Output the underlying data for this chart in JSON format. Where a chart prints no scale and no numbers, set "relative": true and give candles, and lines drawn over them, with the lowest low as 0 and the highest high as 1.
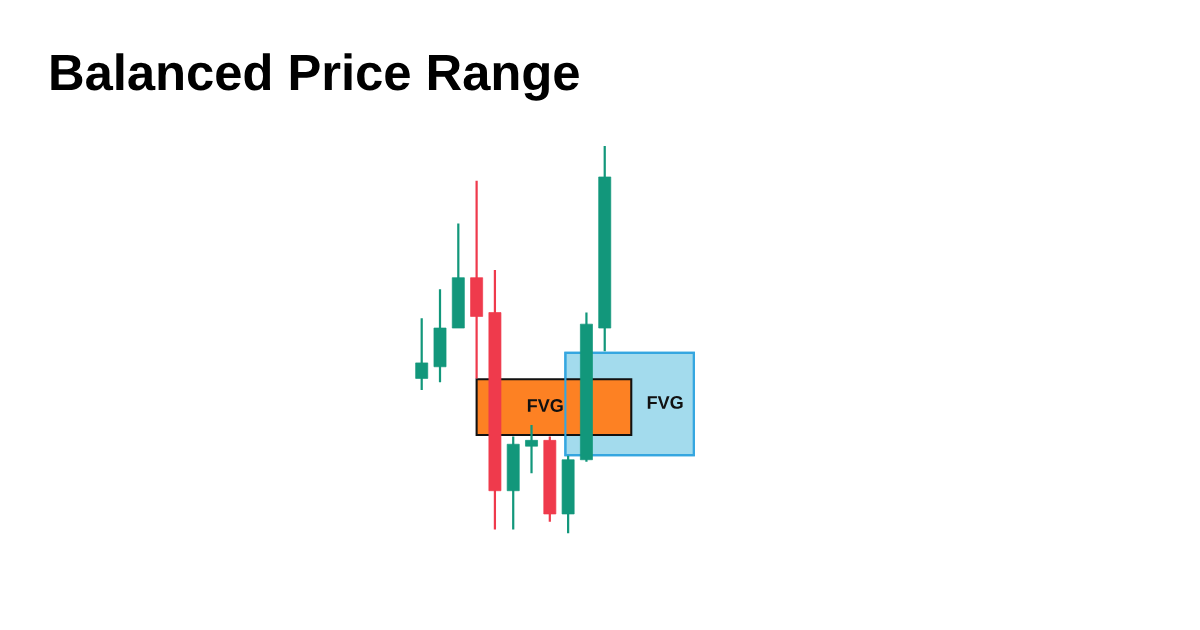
{
  "chart_data": {
    "type": "candlestick",
    "title": "Balanced Price Range",
    "relative": true,
    "categories": [
      null,
      null,
      null,
      null,
      null,
      null,
      null,
      null,
      null,
      null,
      null
    ],
    "ohlc": [
      [
        0.4,
        0.555,
        0.37,
        0.44
      ],
      [
        0.43,
        0.63,
        0.39,
        0.53
      ],
      [
        0.53,
        0.8,
        0.53,
        0.66
      ],
      [
        0.66,
        0.91,
        0.4,
        0.56
      ],
      [
        0.57,
        0.68,
        0.01,
        0.11
      ],
      [
        0.11,
        0.25,
        0.01,
        0.23
      ],
      [
        0.225,
        0.28,
        0.155,
        0.24
      ],
      [
        0.24,
        0.25,
        0.03,
        0.05
      ],
      [
        0.05,
        0.2,
        0.0,
        0.19
      ],
      [
        0.19,
        0.57,
        0.185,
        0.54
      ],
      [
        0.53,
        1.0,
        0.47,
        0.92
      ]
    ],
    "colors": [
      "#12977b",
      "#12977b",
      "#12977b",
      "#ef3a4c",
      "#ef3a4c",
      "#12977b",
      "#12977b",
      "#ef3a4c",
      "#12977b",
      "#12977b",
      "#12977b"
    ],
    "bands": [
      {
        "axis": "y",
        "from": 0.254,
        "to": 0.398,
        "label": "FVG",
        "color": "#fd8123"
      },
      {
        "axis": "y",
        "from": 0.202,
        "to": 0.466,
        "label": "FVG",
        "color": "#a3dbed"
      }
    ]
  }
}
